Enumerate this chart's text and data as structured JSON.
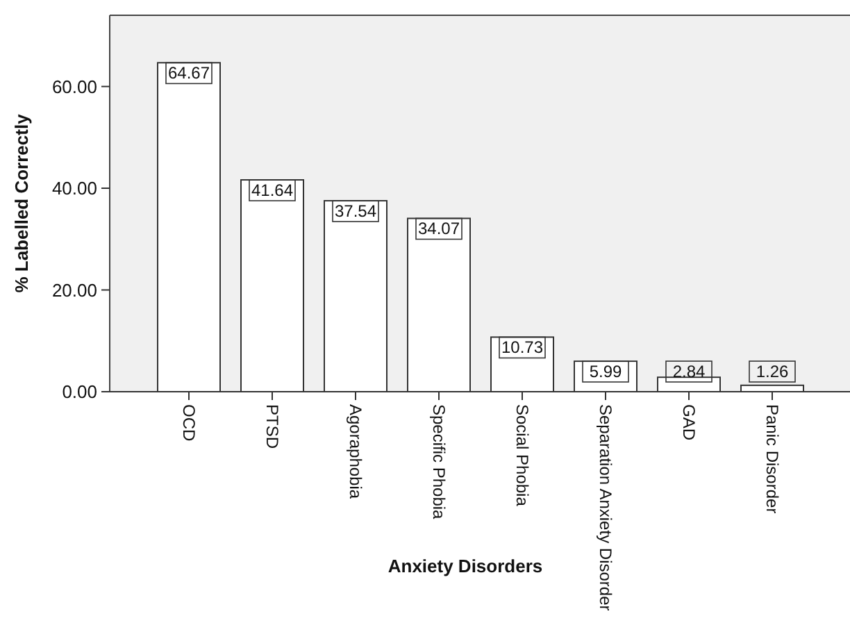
{
  "chart_data": {
    "type": "bar",
    "xlabel": "Anxiety Disorders",
    "ylabel": "% Labelled Correctly",
    "categories": [
      "OCD",
      "PTSD",
      "Agoraphobia",
      "Specific Phobia",
      "Social Phobia",
      "Separation Anxiety Disorder",
      "GAD",
      "Panic Disorder"
    ],
    "values": [
      64.67,
      41.64,
      37.54,
      34.07,
      10.73,
      5.99,
      2.84,
      1.26
    ],
    "color": "#ffffff",
    "ylim": [
      0,
      74
    ],
    "yticks": [
      {
        "value": 0,
        "label": "0.00"
      },
      {
        "value": 20,
        "label": "20.00"
      },
      {
        "value": 40,
        "label": "40.00"
      },
      {
        "value": 60,
        "label": "60.00"
      }
    ],
    "data_labels": true
  }
}
